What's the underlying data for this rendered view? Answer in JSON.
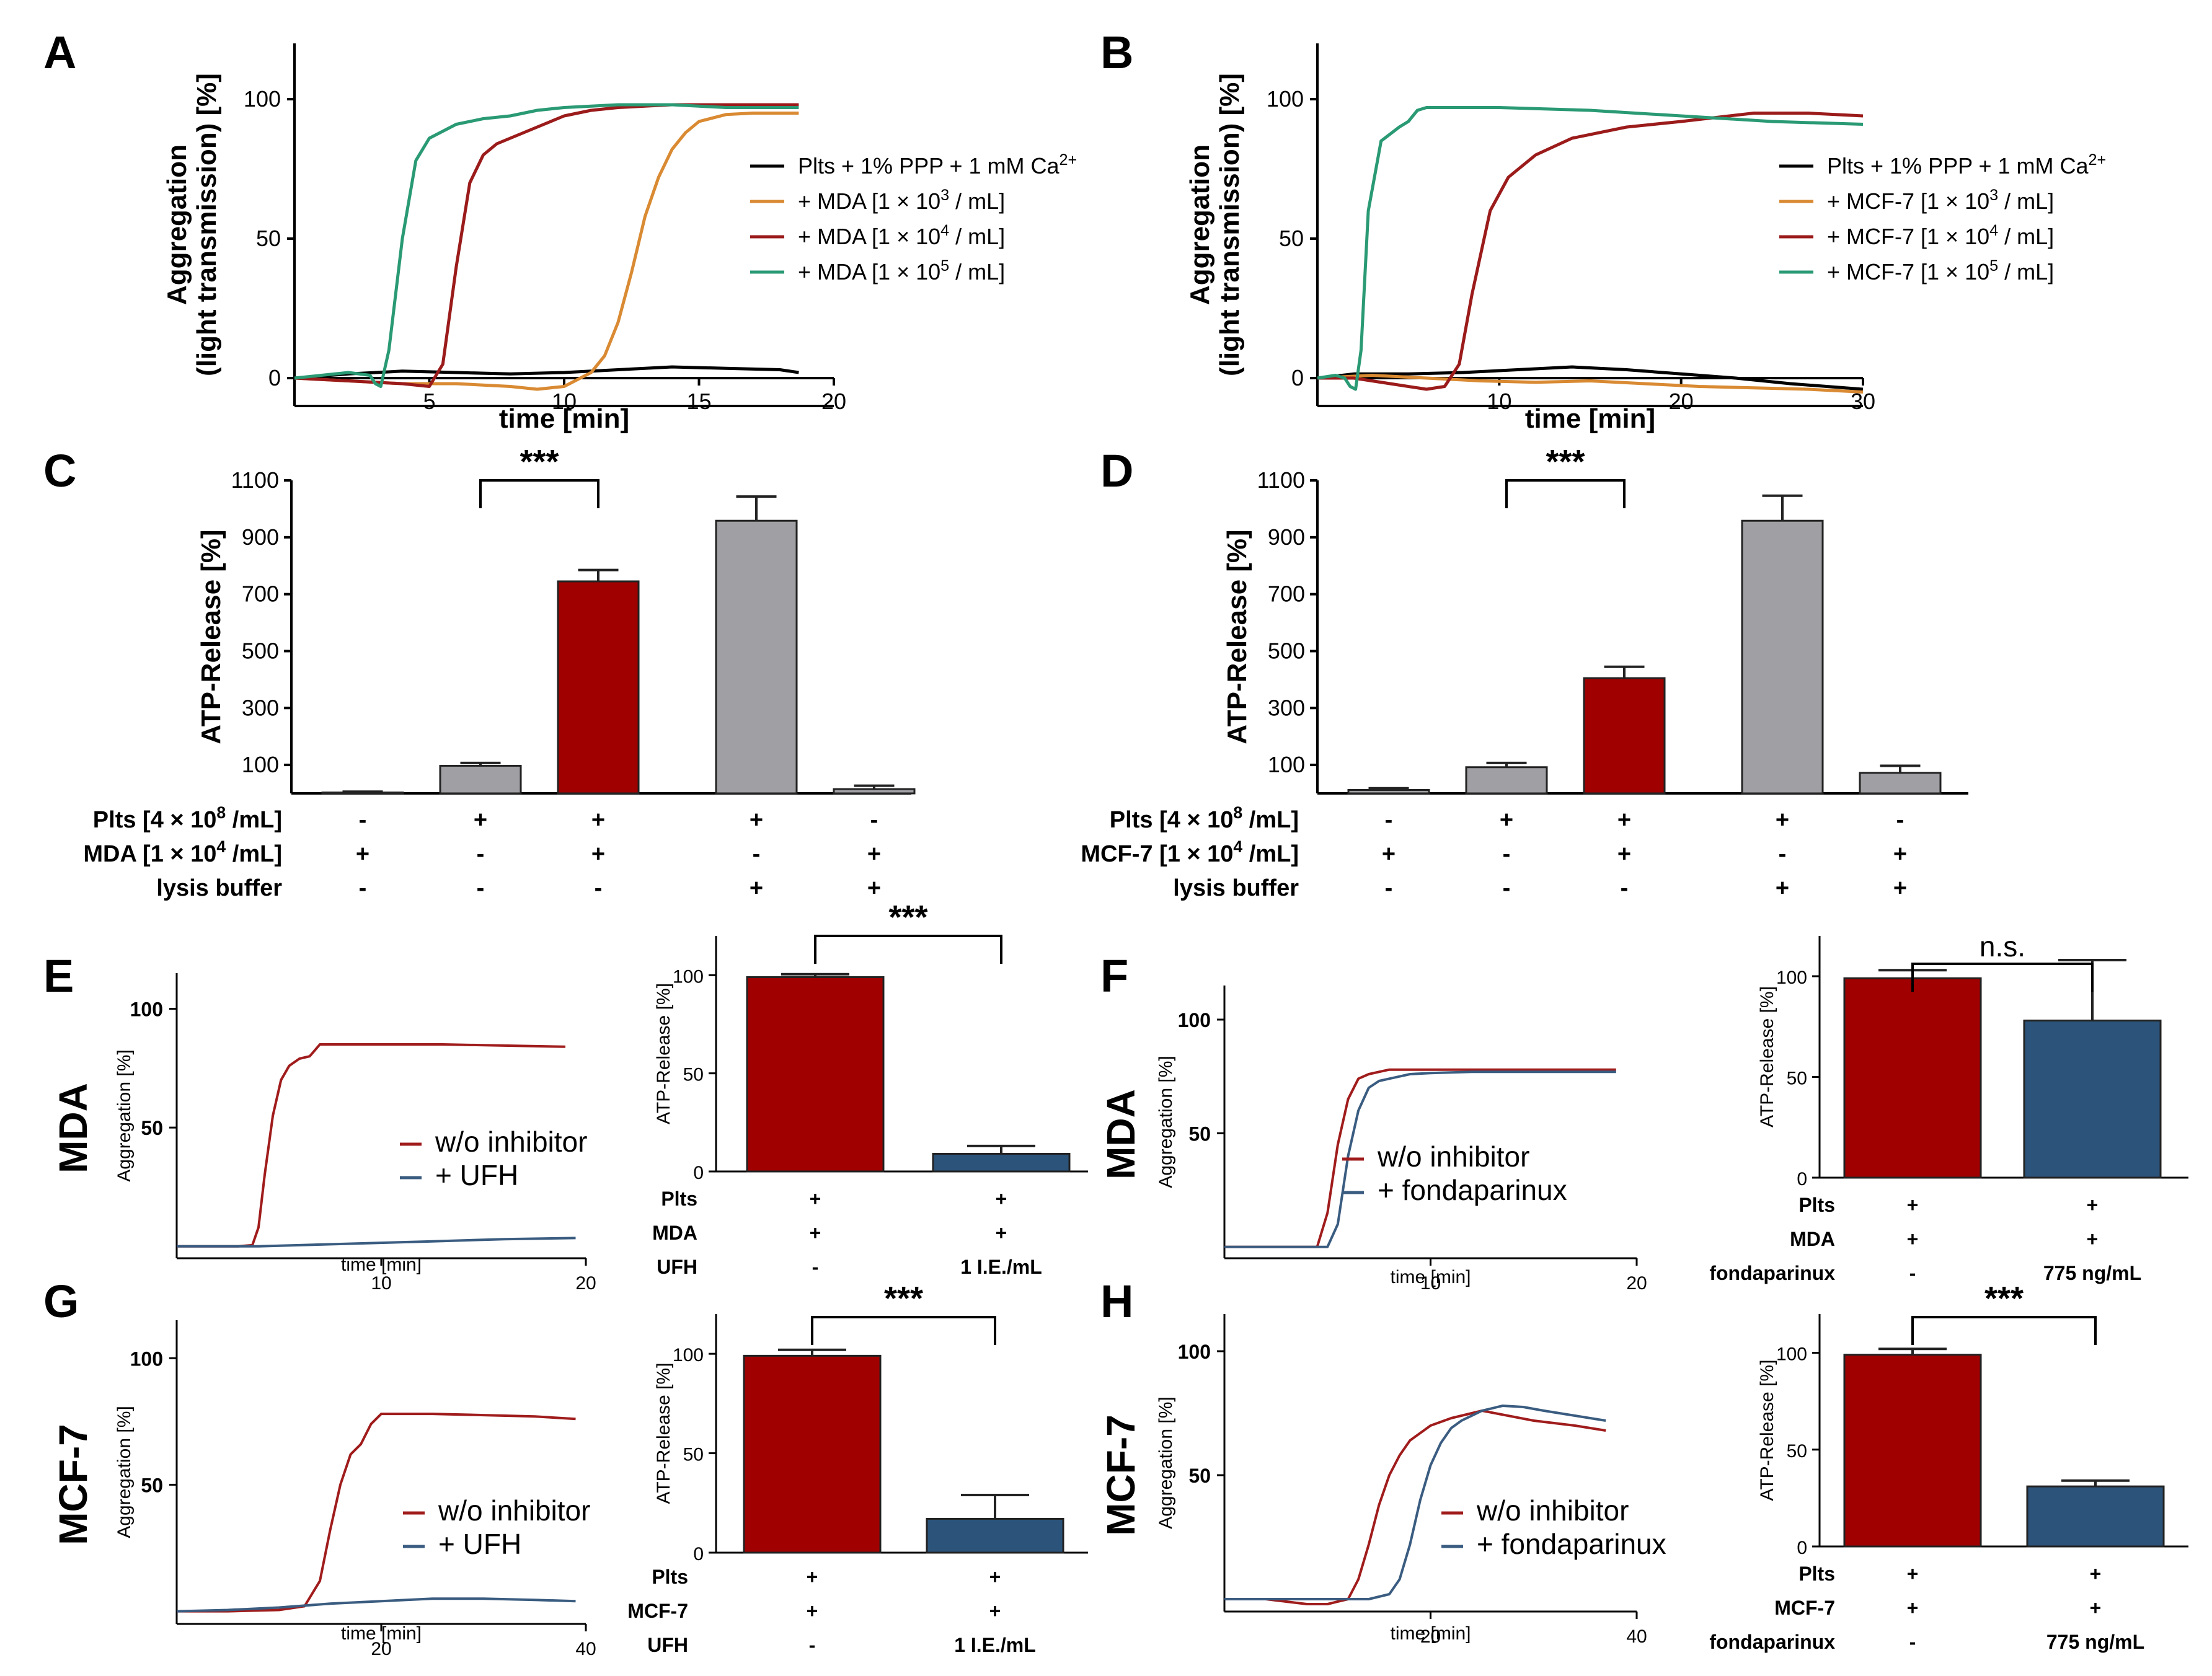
{
  "chart_data": [
    {
      "panel": "A",
      "type": "line",
      "ylabel": [
        "Aggregation",
        "(light transmission) [%]"
      ],
      "xlabel": "time [min]",
      "xlim": [
        0,
        20
      ],
      "ylim": [
        -10,
        120
      ],
      "xticks": [
        5,
        10,
        15,
        20
      ],
      "yticks": [
        0,
        50,
        100
      ],
      "series": [
        {
          "name": "Plts + 1% PPP + 1 mM Ca",
          "sup": "2+",
          "color": "#000000",
          "x": [
            0,
            2,
            4,
            6,
            8,
            10,
            12,
            14,
            16,
            18,
            18.7
          ],
          "y": [
            0,
            1.5,
            2.5,
            2,
            1.5,
            2,
            3,
            4,
            3.5,
            3,
            2
          ]
        },
        {
          "name": "+ MDA [1 × 10",
          "sup": "3",
          "suffix": " / mL]",
          "color": "#d98a32",
          "x": [
            0,
            2,
            4,
            6,
            8,
            9,
            10,
            11,
            11.5,
            12,
            12.5,
            13,
            13.5,
            14,
            14.5,
            15,
            16,
            17,
            18.7
          ],
          "y": [
            0,
            -1,
            -2,
            -2,
            -3,
            -4,
            -3,
            2,
            8,
            20,
            38,
            58,
            72,
            82,
            88,
            92,
            94.5,
            95,
            95
          ]
        },
        {
          "name": "+ MDA [1 × 10",
          "sup": "4",
          "suffix": " / mL]",
          "color": "#9b1b1b",
          "x": [
            0,
            2,
            4,
            5,
            5.5,
            6,
            6.5,
            7,
            7.5,
            8,
            9,
            10,
            11,
            12,
            14,
            16,
            18.7
          ],
          "y": [
            0,
            -1,
            -2,
            -3,
            5,
            40,
            70,
            80,
            84,
            86,
            90,
            94,
            96,
            97,
            98,
            98,
            98
          ]
        },
        {
          "name": "+ MDA [1 × 10",
          "sup": "5",
          "suffix": " / mL]",
          "color": "#2a9a74",
          "x": [
            0,
            1,
            2,
            2.8,
            3,
            3.2,
            3.5,
            4,
            4.5,
            5,
            6,
            7,
            8,
            9,
            10,
            12,
            14,
            16,
            18.7
          ],
          "y": [
            0,
            1,
            2,
            1,
            -2,
            -3,
            10,
            50,
            78,
            86,
            91,
            93,
            94,
            96,
            97,
            98,
            98,
            97,
            97
          ]
        }
      ]
    },
    {
      "panel": "B",
      "type": "line",
      "ylabel": [
        "Aggregation",
        "(light transmission) [%]"
      ],
      "xlabel": "time [min]",
      "xlim": [
        0,
        30
      ],
      "ylim": [
        -10,
        120
      ],
      "xticks": [
        10,
        20,
        30
      ],
      "yticks": [
        0,
        50,
        100
      ],
      "series": [
        {
          "name": "Plts + 1% PPP + 1 mM Ca",
          "sup": "2+",
          "color": "#000000",
          "x": [
            0,
            2,
            5,
            8,
            11,
            14,
            17,
            20,
            23,
            26,
            30
          ],
          "y": [
            0,
            1.5,
            1.5,
            2,
            3,
            4,
            3,
            1.5,
            0,
            -2,
            -4
          ]
        },
        {
          "name": "+ MCF-7 [1 × 10",
          "sup": "3",
          "suffix": " / mL]",
          "color": "#d98a32",
          "x": [
            0,
            3,
            6,
            9,
            12,
            15,
            18,
            21,
            24,
            27,
            30
          ],
          "y": [
            0,
            1,
            0,
            -1,
            -1.5,
            -1,
            -2,
            -3,
            -3.5,
            -4,
            -5
          ]
        },
        {
          "name": "+ MCF-7 [1 × 10",
          "sup": "4",
          "suffix": " / mL]",
          "color": "#9b1b1b",
          "x": [
            0,
            2,
            4,
            6,
            7,
            7.8,
            8.5,
            9.5,
            10.5,
            12,
            14,
            17,
            20,
            24,
            27,
            30
          ],
          "y": [
            0,
            0,
            -2,
            -4,
            -3,
            5,
            30,
            60,
            72,
            80,
            86,
            90,
            92,
            95,
            95,
            94
          ]
        },
        {
          "name": "+ MCF-7 [1 × 10",
          "sup": "5",
          "suffix": " / mL]",
          "color": "#2a9a74",
          "x": [
            0,
            1,
            1.5,
            1.8,
            2.1,
            2.4,
            2.8,
            3.5,
            4.5,
            5,
            5.5,
            6,
            10,
            15,
            20,
            25,
            30
          ],
          "y": [
            0,
            1,
            0,
            -3,
            -4,
            10,
            60,
            85,
            90,
            92,
            96,
            97,
            97,
            96,
            94,
            92,
            91
          ]
        }
      ]
    },
    {
      "panel": "C",
      "type": "bar",
      "ylabel": "ATP-Release [%]",
      "ylim": [
        0,
        1100
      ],
      "yticks": [
        100,
        300,
        500,
        700,
        900,
        1100
      ],
      "values": [
        3,
        97,
        745,
        958,
        15
      ],
      "errors": [
        3,
        10,
        40,
        85,
        12
      ],
      "colors": [
        "#a0a0a4",
        "#a0a0a4",
        "#a00000",
        "#a0a0a4",
        "#a0a0a4"
      ],
      "significance": [
        {
          "from": 1,
          "to": 2,
          "label": "***"
        }
      ],
      "rows": [
        {
          "label": "Plts [4 × 10",
          "sup": "8",
          "suffix": " /mL]",
          "signs": [
            "-",
            "+",
            "+",
            "+",
            "-"
          ]
        },
        {
          "label": "MDA [1 × 10",
          "sup": "4",
          "suffix": " /mL]",
          "signs": [
            "+",
            "-",
            "+",
            "-",
            "+"
          ]
        },
        {
          "label": "lysis buffer",
          "signs": [
            "-",
            "-",
            "-",
            "+",
            "+"
          ]
        }
      ]
    },
    {
      "panel": "D",
      "type": "bar",
      "ylabel": "ATP-Release [%]",
      "ylim": [
        0,
        1100
      ],
      "yticks": [
        100,
        300,
        500,
        700,
        900,
        1100
      ],
      "values": [
        12,
        92,
        405,
        958,
        72
      ],
      "errors": [
        6,
        15,
        40,
        88,
        25
      ],
      "colors": [
        "#a0a0a4",
        "#a0a0a4",
        "#a00000",
        "#a0a0a4",
        "#a0a0a4"
      ],
      "significance": [
        {
          "from": 1,
          "to": 2,
          "label": "***"
        }
      ],
      "rows": [
        {
          "label": "Plts [4 × 10",
          "sup": "8",
          "suffix": " /mL]",
          "signs": [
            "-",
            "+",
            "+",
            "+",
            "-"
          ]
        },
        {
          "label": "MCF-7 [1 × 10",
          "sup": "4",
          "suffix": " /mL]",
          "signs": [
            "+",
            "-",
            "+",
            "-",
            "+"
          ]
        },
        {
          "label": "lysis buffer",
          "signs": [
            "-",
            "-",
            "-",
            "+",
            "+"
          ]
        }
      ]
    },
    {
      "panel": "E",
      "type": "line",
      "side_label": "MDA",
      "ylabel": "Aggregation [%]",
      "xlabel": "time [min]",
      "xlim": [
        0,
        20
      ],
      "ylim": [
        -5,
        115
      ],
      "xticks": [
        10,
        20
      ],
      "yticks": [
        50,
        100
      ],
      "series": [
        {
          "name": "w/o inhibitor",
          "color": "#a01c1c",
          "x": [
            0,
            2,
            3,
            3.7,
            4,
            4.3,
            4.7,
            5.1,
            5.5,
            6,
            6.5,
            7,
            10,
            13,
            16,
            19
          ],
          "y": [
            0,
            0,
            0,
            0.5,
            8,
            30,
            55,
            70,
            76,
            79,
            80,
            85,
            85,
            85,
            84.5,
            84
          ]
        },
        {
          "name": "+ UFH",
          "color": "#3a5c80",
          "x": [
            0,
            4,
            8,
            12,
            16,
            19.5
          ],
          "y": [
            0,
            0,
            1,
            2,
            3,
            3.5
          ]
        }
      ]
    },
    {
      "panel": "E",
      "type": "bar",
      "ylabel": "ATP-Release [%]",
      "ylim": [
        0,
        120
      ],
      "yticks": [
        0,
        50,
        100
      ],
      "values": [
        99,
        9
      ],
      "errors": [
        1.5,
        4
      ],
      "colors": [
        "#a00000",
        "#2c5379"
      ],
      "significance": [
        {
          "from": 0,
          "to": 1,
          "label": "***"
        }
      ],
      "rows": [
        {
          "label": "Plts",
          "signs": [
            "+",
            "+"
          ]
        },
        {
          "label": "MDA",
          "signs": [
            "+",
            "+"
          ]
        },
        {
          "label": "UFH",
          "signs": [
            "-",
            "1 I.E./mL"
          ]
        }
      ]
    },
    {
      "panel": "F",
      "type": "line",
      "side_label": "MDA",
      "ylabel": "Aggregation [%]",
      "xlabel": "time [min]",
      "xlim": [
        0,
        20
      ],
      "ylim": [
        -5,
        115
      ],
      "xticks": [
        10,
        20
      ],
      "yticks": [
        50,
        100
      ],
      "series": [
        {
          "name": "w/o inhibitor",
          "color": "#a01c1c",
          "x": [
            0,
            3,
            4.5,
            5,
            5.5,
            6,
            6.5,
            7,
            7.5,
            8,
            9,
            12,
            15,
            19
          ],
          "y": [
            0,
            0,
            0,
            15,
            45,
            65,
            74,
            76,
            77,
            78,
            78,
            78,
            78,
            78
          ]
        },
        {
          "name": "+ fondaparinux",
          "color": "#3a5c80",
          "x": [
            0,
            3,
            5,
            5.5,
            6,
            6.5,
            7,
            7.5,
            8,
            8.5,
            9,
            10,
            12,
            15,
            19
          ],
          "y": [
            0,
            0,
            0,
            10,
            40,
            60,
            70,
            73,
            74,
            75,
            76,
            76.5,
            77,
            77,
            77
          ]
        }
      ]
    },
    {
      "panel": "F",
      "type": "bar",
      "ylabel": "ATP-Release [%]",
      "ylim": [
        0,
        120
      ],
      "yticks": [
        0,
        50,
        100
      ],
      "values": [
        99,
        78
      ],
      "errors": [
        4,
        30
      ],
      "colors": [
        "#a00000",
        "#2c5379"
      ],
      "significance": [
        {
          "from": 0,
          "to": 1,
          "label": "n.s."
        }
      ],
      "rows": [
        {
          "label": "Plts",
          "signs": [
            "+",
            "+"
          ]
        },
        {
          "label": "MDA",
          "signs": [
            "+",
            "+"
          ]
        },
        {
          "label": "fondaparinux",
          "signs": [
            "-",
            "775 ng/mL"
          ]
        }
      ]
    },
    {
      "panel": "G",
      "type": "line",
      "side_label": "MCF-7",
      "ylabel": "Aggregation [%]",
      "xlabel": "time [min]",
      "xlim": [
        0,
        40
      ],
      "ylim": [
        -5,
        115
      ],
      "xticks": [
        20,
        40
      ],
      "yticks": [
        50,
        100
      ],
      "series": [
        {
          "name": "w/o inhibitor",
          "color": "#a01c1c",
          "x": [
            0,
            5,
            10,
            12.5,
            14,
            15,
            16,
            17,
            18,
            19,
            20,
            21,
            25,
            30,
            35,
            39
          ],
          "y": [
            0,
            0,
            0.5,
            2,
            12,
            32,
            50,
            62,
            66,
            74,
            78,
            78,
            78,
            77.5,
            77,
            76
          ]
        },
        {
          "name": "+ UFH",
          "color": "#3a5c80",
          "x": [
            0,
            5,
            10,
            15,
            20,
            25,
            30,
            35,
            39
          ],
          "y": [
            0,
            0.5,
            1.5,
            3,
            4,
            5,
            5,
            4.5,
            4
          ]
        }
      ]
    },
    {
      "panel": "G",
      "type": "bar",
      "ylabel": "ATP-Release [%]",
      "ylim": [
        0,
        120
      ],
      "yticks": [
        0,
        50,
        100
      ],
      "values": [
        99,
        17
      ],
      "errors": [
        3,
        12
      ],
      "colors": [
        "#a00000",
        "#2c5379"
      ],
      "significance": [
        {
          "from": 0,
          "to": 1,
          "label": "***"
        }
      ],
      "rows": [
        {
          "label": "Plts",
          "signs": [
            "+",
            "+"
          ]
        },
        {
          "label": "MCF-7",
          "signs": [
            "+",
            "+"
          ]
        },
        {
          "label": "UFH",
          "signs": [
            "-",
            "1 I.E./mL"
          ]
        }
      ]
    },
    {
      "panel": "H",
      "type": "line",
      "side_label": "MCF-7",
      "ylabel": "Aggregation [%]",
      "xlabel": "time [min]",
      "xlim": [
        0,
        40
      ],
      "ylim": [
        -5,
        115
      ],
      "xticks": [
        20,
        40
      ],
      "yticks": [
        50,
        100
      ],
      "series": [
        {
          "name": "w/o inhibitor",
          "color": "#a01c1c",
          "x": [
            0,
            4,
            8,
            10,
            12,
            13,
            14,
            15,
            16,
            17,
            18,
            20,
            22,
            24,
            25,
            30,
            34,
            37
          ],
          "y": [
            0,
            0,
            -2,
            -2,
            0,
            8,
            22,
            38,
            50,
            58,
            64,
            70,
            73,
            75,
            76,
            72,
            70,
            68
          ]
        },
        {
          "name": "+ fondaparinux",
          "color": "#3a5c80",
          "x": [
            0,
            5,
            10,
            14,
            16,
            17,
            18,
            19,
            20,
            21,
            22,
            23,
            25,
            27,
            29,
            31,
            34,
            37
          ],
          "y": [
            0,
            0,
            0,
            0,
            2,
            8,
            22,
            40,
            54,
            63,
            69,
            72,
            76,
            78,
            77.5,
            76,
            74,
            72
          ]
        }
      ]
    },
    {
      "panel": "H",
      "type": "bar",
      "ylabel": "ATP-Release [%]",
      "ylim": [
        0,
        120
      ],
      "yticks": [
        0,
        50,
        100
      ],
      "values": [
        99,
        31
      ],
      "errors": [
        3,
        3
      ],
      "colors": [
        "#a00000",
        "#2c5379"
      ],
      "significance": [
        {
          "from": 0,
          "to": 1,
          "label": "***"
        }
      ],
      "rows": [
        {
          "label": "Plts",
          "signs": [
            "+",
            "+"
          ]
        },
        {
          "label": "MCF-7",
          "signs": [
            "+",
            "+"
          ]
        },
        {
          "label": "fondaparinux",
          "signs": [
            "-",
            "775 ng/mL"
          ]
        }
      ]
    }
  ]
}
